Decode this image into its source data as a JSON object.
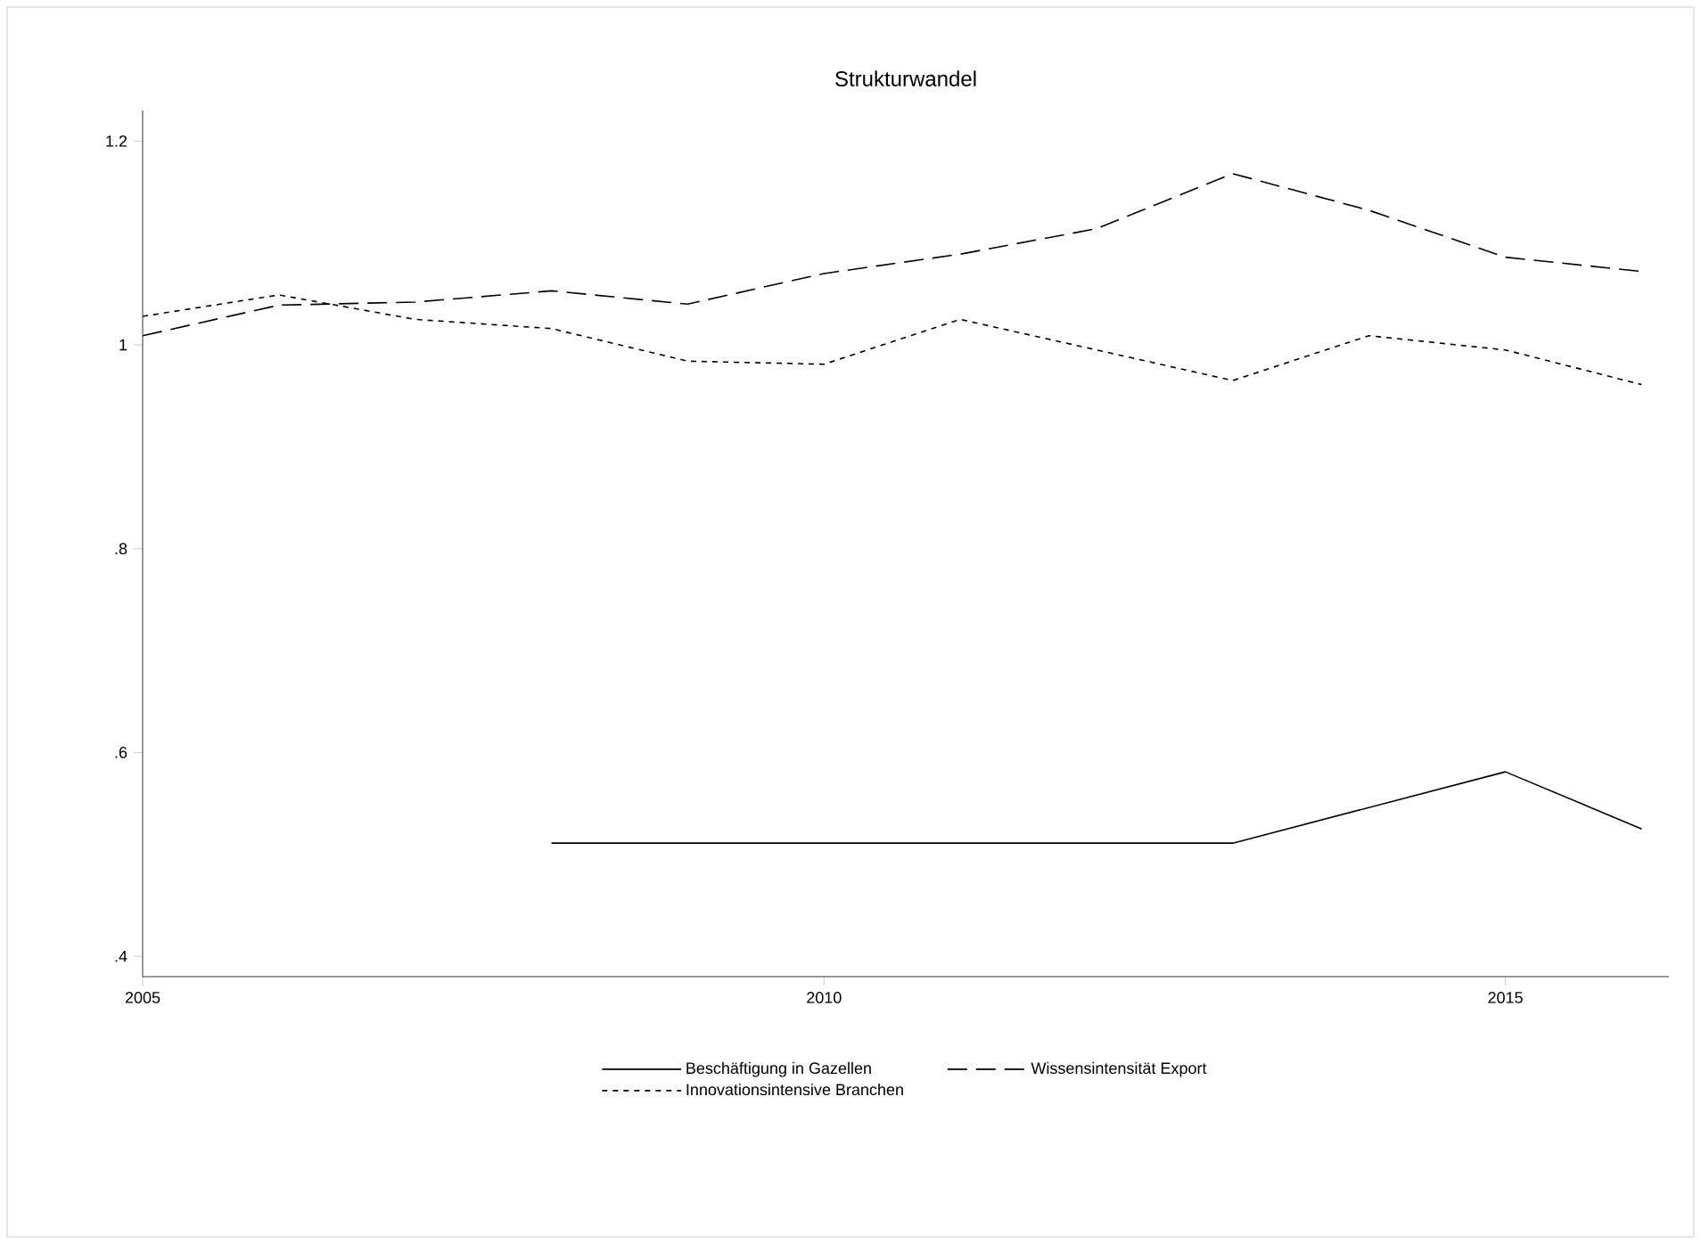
{
  "chart_data": {
    "type": "line",
    "title": "Strukturwandel",
    "x": [
      2005,
      2006,
      2007,
      2008,
      2009,
      2010,
      2011,
      2012,
      2013,
      2014,
      2015,
      2016
    ],
    "series": [
      {
        "name": "Beschäftigung in Gazellen",
        "color": "#000000",
        "line_style": "solid",
        "values": [
          null,
          null,
          null,
          0.511,
          0.511,
          0.511,
          0.511,
          0.511,
          0.511,
          0.546,
          0.581,
          0.525
        ]
      },
      {
        "name": "Wissensintensität Export",
        "color": "#000000",
        "line_style": "dashed",
        "values": [
          1.009,
          1.039,
          1.042,
          1.053,
          1.04,
          1.07,
          1.089,
          1.114,
          1.168,
          1.132,
          1.086,
          1.072
        ]
      },
      {
        "name": "Innovationsintensive Branchen",
        "color": "#000000",
        "line_style": "dotted",
        "values": [
          1.028,
          1.049,
          1.025,
          1.016,
          0.984,
          0.981,
          1.025,
          0.995,
          0.965,
          1.009,
          0.995,
          0.961
        ]
      }
    ],
    "xlim": [
      2005,
      2016.2
    ],
    "ylim": [
      0.38,
      1.23
    ],
    "xticks": [
      2005,
      2010,
      2015
    ],
    "yticks": [
      {
        "value": 0.4,
        "label": ".4"
      },
      {
        "value": 0.6,
        "label": ".6"
      },
      {
        "value": 0.8,
        "label": ".8"
      },
      {
        "value": 1,
        "label": "1"
      },
      {
        "value": 1.2,
        "label": "1.2"
      }
    ],
    "grid": false,
    "legend": "bottom",
    "marker": "none"
  }
}
